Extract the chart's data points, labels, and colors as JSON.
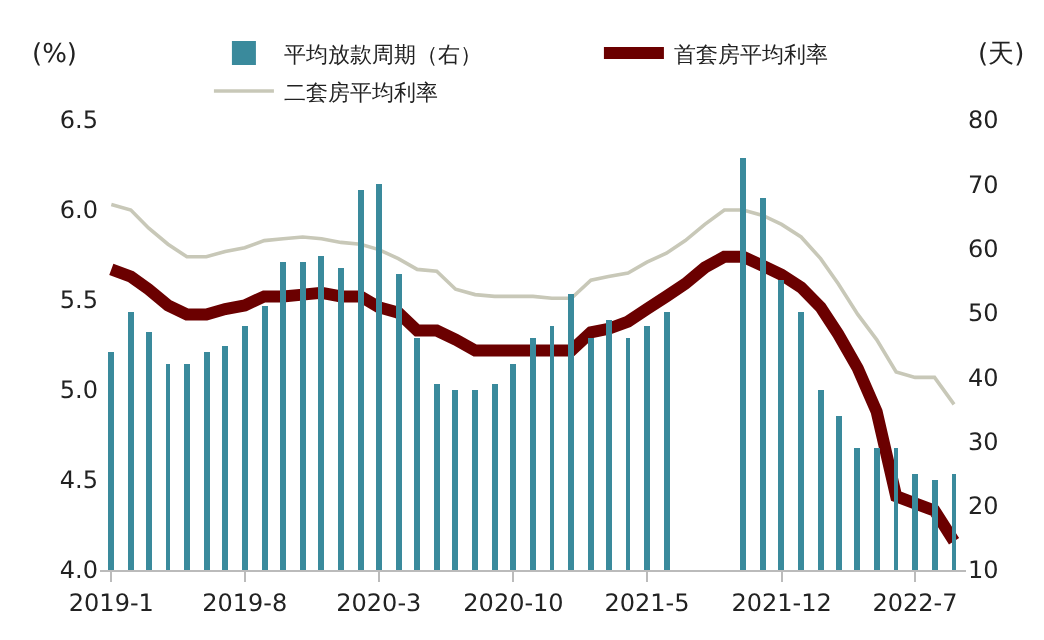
{
  "chart_data": {
    "type": "line",
    "ylabel": "(%)",
    "y2label": "(天)",
    "x": [
      "2019-01",
      "2019-02",
      "2019-03",
      "2019-04",
      "2019-05",
      "2019-06",
      "2019-07",
      "2019-08",
      "2019-09",
      "2019-10",
      "2019-11",
      "2019-12",
      "2020-01",
      "2020-02",
      "2020-03",
      "2020-04",
      "2020-05",
      "2020-06",
      "2020-07",
      "2020-08",
      "2020-09",
      "2020-10",
      "2020-11",
      "2020-12",
      "2021-01",
      "2021-02",
      "2021-03",
      "2021-04",
      "2021-05",
      "2021-06",
      "2021-07",
      "2021-08",
      "2021-09",
      "2021-10",
      "2021-11",
      "2021-12",
      "2022-01",
      "2022-02",
      "2022-03",
      "2022-04",
      "2022-05",
      "2022-06",
      "2022-07",
      "2022-08",
      "2022-09"
    ],
    "series": [
      {
        "name": "平均放款周期（右）",
        "type": "bar",
        "axis": "y2",
        "color": "#3a8a9c",
        "values": [
          44,
          50,
          47,
          42,
          42,
          44,
          45,
          48,
          51,
          58,
          58,
          59,
          57,
          69,
          70,
          56,
          46,
          39,
          38,
          38,
          39,
          42,
          46,
          48,
          53,
          46,
          49,
          46,
          48,
          50,
          null,
          null,
          null,
          74,
          68,
          55,
          50,
          38,
          34,
          29,
          29,
          29,
          25,
          24,
          25
        ]
      },
      {
        "name": "首套房平均利率",
        "color": "#6b0000",
        "values": [
          5.67,
          5.63,
          5.56,
          5.47,
          5.42,
          5.42,
          5.45,
          5.47,
          5.52,
          5.52,
          5.53,
          5.54,
          5.52,
          5.52,
          5.46,
          5.43,
          5.33,
          5.33,
          5.28,
          5.22,
          5.22,
          5.22,
          5.22,
          5.22,
          5.22,
          5.32,
          5.34,
          5.38,
          5.45,
          5.52,
          5.59,
          5.68,
          5.74,
          5.74,
          5.69,
          5.64,
          5.57,
          5.46,
          5.31,
          5.12,
          4.88,
          4.41,
          4.37,
          4.33,
          4.16
        ]
      },
      {
        "name": "二套房平均利率",
        "color": "#c8c8b8",
        "values": [
          6.03,
          6.0,
          5.9,
          5.81,
          5.74,
          5.74,
          5.77,
          5.79,
          5.83,
          5.84,
          5.85,
          5.84,
          5.82,
          5.81,
          5.78,
          5.73,
          5.67,
          5.66,
          5.56,
          5.53,
          5.52,
          5.52,
          5.52,
          5.51,
          5.51,
          5.61,
          5.63,
          5.65,
          5.71,
          5.76,
          5.83,
          5.92,
          6.0,
          6.0,
          5.97,
          5.92,
          5.85,
          5.73,
          5.59,
          5.42,
          5.28,
          5.1,
          5.07,
          5.07,
          4.92
        ]
      }
    ],
    "xlim": [
      "2018-12-14",
      "2022-09-20"
    ],
    "xticks": [
      {
        "value": "2019-01",
        "label": "2019-1"
      },
      {
        "value": "2019-08",
        "label": "2019-8"
      },
      {
        "value": "2020-03",
        "label": "2020-3"
      },
      {
        "value": "2020-10",
        "label": "2020-10"
      },
      {
        "value": "2021-05",
        "label": "2021-5"
      },
      {
        "value": "2021-12",
        "label": "2021-12"
      },
      {
        "value": "2022-07",
        "label": "2022-7"
      }
    ],
    "ylim": [
      4.0,
      6.5
    ],
    "yticks": [
      {
        "value": 4.0,
        "label": "4.0"
      },
      {
        "value": 4.5,
        "label": "4.5"
      },
      {
        "value": 5.0,
        "label": "5.0"
      },
      {
        "value": 5.5,
        "label": "5.5"
      },
      {
        "value": 6.0,
        "label": "6.0"
      },
      {
        "value": 6.5,
        "label": "6.5"
      }
    ],
    "y2lim": [
      10,
      80
    ],
    "y2ticks": [
      10,
      20,
      30,
      40,
      50,
      60,
      70,
      80
    ],
    "legend": "top",
    "marker": "none"
  }
}
